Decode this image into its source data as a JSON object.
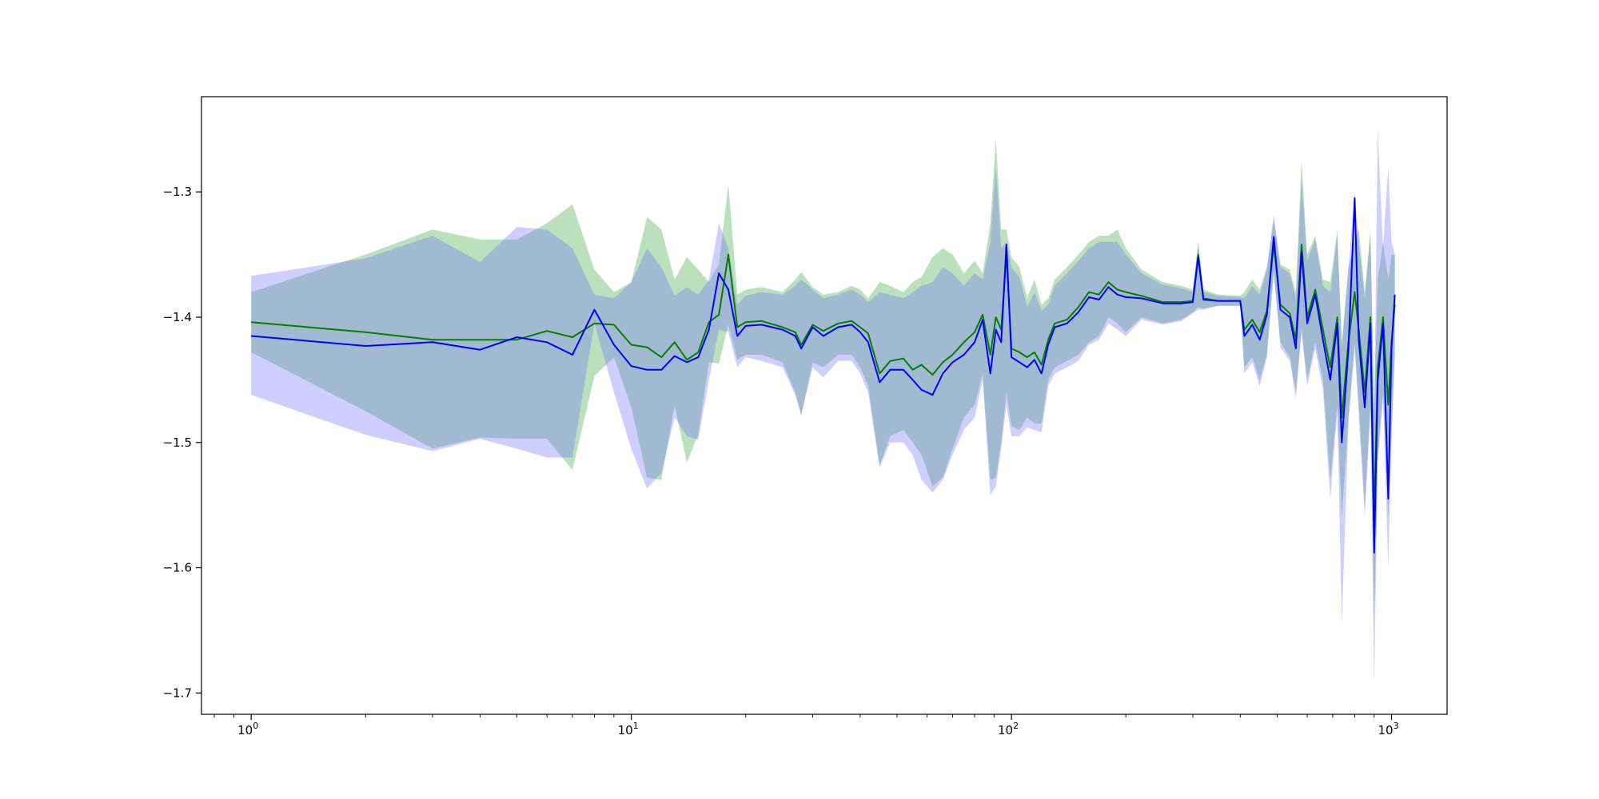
{
  "chart_data": {
    "type": "line",
    "title": "",
    "xlabel": "",
    "ylabel": "",
    "xscale": "log",
    "xlim": [
      0.74,
      1400
    ],
    "ylim": [
      -1.717,
      -1.224
    ],
    "grid": false,
    "legend": "none",
    "x_ticks": [
      {
        "value": 1,
        "base": "10",
        "exp": "0"
      },
      {
        "value": 10,
        "base": "10",
        "exp": "1"
      },
      {
        "value": 100,
        "base": "10",
        "exp": "2"
      },
      {
        "value": 1000,
        "base": "10",
        "exp": "3"
      }
    ],
    "y_ticks": [
      {
        "value": -1.3,
        "label": "−1.3"
      },
      {
        "value": -1.4,
        "label": "−1.4"
      },
      {
        "value": -1.5,
        "label": "−1.5"
      },
      {
        "value": -1.6,
        "label": "−1.6"
      },
      {
        "value": -1.7,
        "label": "−1.7"
      }
    ],
    "series": [
      {
        "color": "#008000",
        "band_color": "#2ca02c",
        "points": [
          [
            1,
            -1.404,
            -1.38,
            -1.428
          ],
          [
            2,
            -1.412,
            -1.35,
            -1.475
          ],
          [
            3,
            -1.418,
            -1.33,
            -1.505
          ],
          [
            4,
            -1.418,
            -1.338,
            -1.496
          ],
          [
            5,
            -1.418,
            -1.338,
            -1.497
          ],
          [
            6,
            -1.411,
            -1.325,
            -1.497
          ],
          [
            7,
            -1.416,
            -1.31,
            -1.522
          ],
          [
            8,
            -1.405,
            -1.362,
            -1.447
          ],
          [
            9,
            -1.406,
            -1.38,
            -1.432
          ],
          [
            10,
            -1.422,
            -1.372,
            -1.472
          ],
          [
            11,
            -1.424,
            -1.32,
            -1.528
          ],
          [
            12,
            -1.432,
            -1.33,
            -1.53
          ],
          [
            13,
            -1.42,
            -1.37,
            -1.47
          ],
          [
            14,
            -1.434,
            -1.352,
            -1.516
          ],
          [
            15,
            -1.428,
            -1.362,
            -1.494
          ],
          [
            16,
            -1.404,
            -1.372,
            -1.436
          ],
          [
            17,
            -1.398,
            -1.358,
            -1.437
          ],
          [
            18,
            -1.35,
            -1.294,
            -1.406
          ],
          [
            19,
            -1.408,
            -1.382,
            -1.434
          ],
          [
            20,
            -1.404,
            -1.378,
            -1.43
          ],
          [
            22,
            -1.403,
            -1.376,
            -1.43
          ],
          [
            25,
            -1.408,
            -1.38,
            -1.436
          ],
          [
            27,
            -1.412,
            -1.37,
            -1.46
          ],
          [
            28,
            -1.422,
            -1.364,
            -1.478
          ],
          [
            30,
            -1.406,
            -1.376,
            -1.436
          ],
          [
            32,
            -1.411,
            -1.382,
            -1.44
          ],
          [
            35,
            -1.405,
            -1.38,
            -1.43
          ],
          [
            38,
            -1.403,
            -1.375,
            -1.43
          ],
          [
            40,
            -1.408,
            -1.378,
            -1.44
          ],
          [
            42,
            -1.413,
            -1.385,
            -1.455
          ],
          [
            45,
            -1.445,
            -1.372,
            -1.518
          ],
          [
            48,
            -1.435,
            -1.375,
            -1.495
          ],
          [
            52,
            -1.433,
            -1.38,
            -1.49
          ],
          [
            55,
            -1.442,
            -1.372,
            -1.5
          ],
          [
            58,
            -1.438,
            -1.368,
            -1.51
          ],
          [
            62,
            -1.446,
            -1.352,
            -1.535
          ],
          [
            66,
            -1.436,
            -1.345,
            -1.528
          ],
          [
            70,
            -1.43,
            -1.35,
            -1.505
          ],
          [
            75,
            -1.42,
            -1.365,
            -1.48
          ],
          [
            80,
            -1.412,
            -1.355,
            -1.47
          ],
          [
            84,
            -1.398,
            -1.365,
            -1.445
          ],
          [
            88,
            -1.43,
            -1.325,
            -1.53
          ],
          [
            91,
            -1.4,
            -1.258,
            -1.528
          ],
          [
            94,
            -1.41,
            -1.33,
            -1.5
          ],
          [
            97,
            -1.35,
            -1.33,
            -1.46
          ],
          [
            100,
            -1.425,
            -1.352,
            -1.487
          ],
          [
            105,
            -1.428,
            -1.36,
            -1.49
          ],
          [
            110,
            -1.432,
            -1.385,
            -1.48
          ],
          [
            115,
            -1.428,
            -1.37,
            -1.485
          ],
          [
            120,
            -1.438,
            -1.39,
            -1.485
          ],
          [
            125,
            -1.418,
            -1.385,
            -1.45
          ],
          [
            130,
            -1.405,
            -1.37,
            -1.44
          ],
          [
            140,
            -1.402,
            -1.36,
            -1.435
          ],
          [
            150,
            -1.392,
            -1.35,
            -1.43
          ],
          [
            160,
            -1.38,
            -1.34,
            -1.42
          ],
          [
            170,
            -1.382,
            -1.335,
            -1.415
          ],
          [
            180,
            -1.372,
            -1.335,
            -1.4
          ],
          [
            190,
            -1.378,
            -1.33,
            -1.405
          ],
          [
            200,
            -1.38,
            -1.345,
            -1.412
          ],
          [
            220,
            -1.383,
            -1.362,
            -1.4
          ],
          [
            250,
            -1.388,
            -1.372,
            -1.405
          ],
          [
            280,
            -1.388,
            -1.375,
            -1.402
          ],
          [
            300,
            -1.387,
            -1.378,
            -1.396
          ],
          [
            310,
            -1.35,
            -1.34,
            -1.392
          ],
          [
            320,
            -1.385,
            -1.378,
            -1.393
          ],
          [
            350,
            -1.387,
            -1.382,
            -1.391
          ],
          [
            400,
            -1.387,
            -1.383,
            -1.391
          ],
          [
            410,
            -1.41,
            -1.38,
            -1.44
          ],
          [
            430,
            -1.402,
            -1.37,
            -1.432
          ],
          [
            450,
            -1.412,
            -1.378,
            -1.45
          ],
          [
            470,
            -1.395,
            -1.36,
            -1.43
          ],
          [
            490,
            -1.342,
            -1.322,
            -1.366
          ],
          [
            510,
            -1.39,
            -1.358,
            -1.42
          ],
          [
            540,
            -1.397,
            -1.362,
            -1.432
          ],
          [
            560,
            -1.418,
            -1.38,
            -1.46
          ],
          [
            580,
            -1.342,
            -1.275,
            -1.41
          ],
          [
            600,
            -1.4,
            -1.35,
            -1.45
          ],
          [
            630,
            -1.378,
            -1.335,
            -1.42
          ],
          [
            660,
            -1.41,
            -1.37,
            -1.45
          ],
          [
            690,
            -1.44,
            -1.372,
            -1.53
          ],
          [
            720,
            -1.4,
            -1.33,
            -1.47
          ],
          [
            740,
            -1.48,
            -1.42,
            -1.56
          ],
          [
            770,
            -1.42,
            -1.36,
            -1.48
          ],
          [
            800,
            -1.38,
            -1.34,
            -1.42
          ],
          [
            820,
            -1.41,
            -1.33,
            -1.47
          ],
          [
            850,
            -1.46,
            -1.38,
            -1.55
          ],
          [
            880,
            -1.4,
            -1.33,
            -1.47
          ],
          [
            900,
            -1.56,
            -1.47,
            -1.64
          ],
          [
            920,
            -1.44,
            -1.37,
            -1.51
          ],
          [
            950,
            -1.4,
            -1.34,
            -1.46
          ],
          [
            980,
            -1.47,
            -1.37,
            -1.56
          ],
          [
            1000,
            -1.42,
            -1.35,
            -1.49
          ],
          [
            1020,
            -1.39,
            -1.35,
            -1.43
          ]
        ]
      },
      {
        "color": "#0000ff",
        "band_color": "#6b6bff",
        "points": [
          [
            1,
            -1.415,
            -1.367,
            -1.462
          ],
          [
            2,
            -1.423,
            -1.353,
            -1.494
          ],
          [
            3,
            -1.42,
            -1.335,
            -1.507
          ],
          [
            4,
            -1.426,
            -1.356,
            -1.497
          ],
          [
            5,
            -1.416,
            -1.328,
            -1.505
          ],
          [
            6,
            -1.42,
            -1.33,
            -1.512
          ],
          [
            7,
            -1.43,
            -1.345,
            -1.512
          ],
          [
            8,
            -1.394,
            -1.382,
            -1.405
          ],
          [
            9,
            -1.422,
            -1.385,
            -1.46
          ],
          [
            10,
            -1.439,
            -1.372,
            -1.505
          ],
          [
            11,
            -1.442,
            -1.345,
            -1.537
          ],
          [
            12,
            -1.442,
            -1.36,
            -1.524
          ],
          [
            13,
            -1.431,
            -1.383,
            -1.48
          ],
          [
            14,
            -1.436,
            -1.376,
            -1.495
          ],
          [
            15,
            -1.432,
            -1.382,
            -1.498
          ],
          [
            16,
            -1.41,
            -1.37,
            -1.45
          ],
          [
            17,
            -1.365,
            -1.325,
            -1.41
          ],
          [
            18,
            -1.378,
            -1.345,
            -1.412
          ],
          [
            19,
            -1.415,
            -1.39,
            -1.44
          ],
          [
            20,
            -1.407,
            -1.383,
            -1.432
          ],
          [
            22,
            -1.406,
            -1.38,
            -1.435
          ],
          [
            25,
            -1.41,
            -1.382,
            -1.44
          ],
          [
            27,
            -1.415,
            -1.375,
            -1.462
          ],
          [
            28,
            -1.425,
            -1.37,
            -1.478
          ],
          [
            30,
            -1.408,
            -1.378,
            -1.44
          ],
          [
            32,
            -1.415,
            -1.385,
            -1.448
          ],
          [
            35,
            -1.408,
            -1.382,
            -1.435
          ],
          [
            38,
            -1.406,
            -1.378,
            -1.435
          ],
          [
            40,
            -1.412,
            -1.382,
            -1.445
          ],
          [
            42,
            -1.42,
            -1.388,
            -1.46
          ],
          [
            45,
            -1.452,
            -1.38,
            -1.52
          ],
          [
            48,
            -1.442,
            -1.382,
            -1.5
          ],
          [
            52,
            -1.442,
            -1.385,
            -1.5
          ],
          [
            55,
            -1.45,
            -1.38,
            -1.51
          ],
          [
            58,
            -1.458,
            -1.375,
            -1.53
          ],
          [
            62,
            -1.462,
            -1.372,
            -1.54
          ],
          [
            66,
            -1.445,
            -1.36,
            -1.53
          ],
          [
            70,
            -1.436,
            -1.365,
            -1.51
          ],
          [
            75,
            -1.43,
            -1.375,
            -1.49
          ],
          [
            80,
            -1.42,
            -1.365,
            -1.48
          ],
          [
            84,
            -1.402,
            -1.37,
            -1.45
          ],
          [
            88,
            -1.445,
            -1.34,
            -1.542
          ],
          [
            91,
            -1.41,
            -1.28,
            -1.535
          ],
          [
            94,
            -1.42,
            -1.345,
            -1.505
          ],
          [
            97,
            -1.342,
            -1.34,
            -1.47
          ],
          [
            100,
            -1.432,
            -1.36,
            -1.495
          ],
          [
            105,
            -1.436,
            -1.368,
            -1.495
          ],
          [
            110,
            -1.44,
            -1.392,
            -1.488
          ],
          [
            115,
            -1.434,
            -1.38,
            -1.49
          ],
          [
            120,
            -1.445,
            -1.395,
            -1.492
          ],
          [
            125,
            -1.422,
            -1.39,
            -1.455
          ],
          [
            130,
            -1.408,
            -1.375,
            -1.445
          ],
          [
            140,
            -1.405,
            -1.365,
            -1.44
          ],
          [
            150,
            -1.396,
            -1.355,
            -1.435
          ],
          [
            160,
            -1.384,
            -1.345,
            -1.422
          ],
          [
            170,
            -1.386,
            -1.34,
            -1.418
          ],
          [
            180,
            -1.376,
            -1.34,
            -1.405
          ],
          [
            190,
            -1.382,
            -1.34,
            -1.41
          ],
          [
            200,
            -1.384,
            -1.35,
            -1.415
          ],
          [
            220,
            -1.385,
            -1.365,
            -1.402
          ],
          [
            250,
            -1.389,
            -1.374,
            -1.406
          ],
          [
            280,
            -1.389,
            -1.377,
            -1.403
          ],
          [
            300,
            -1.388,
            -1.38,
            -1.397
          ],
          [
            310,
            -1.352,
            -1.342,
            -1.394
          ],
          [
            320,
            -1.386,
            -1.38,
            -1.394
          ],
          [
            350,
            -1.387,
            -1.383,
            -1.391
          ],
          [
            400,
            -1.387,
            -1.384,
            -1.391
          ],
          [
            410,
            -1.415,
            -1.385,
            -1.445
          ],
          [
            430,
            -1.406,
            -1.375,
            -1.436
          ],
          [
            450,
            -1.418,
            -1.382,
            -1.455
          ],
          [
            470,
            -1.398,
            -1.362,
            -1.432
          ],
          [
            490,
            -1.336,
            -1.318,
            -1.362
          ],
          [
            510,
            -1.394,
            -1.36,
            -1.424
          ],
          [
            540,
            -1.4,
            -1.365,
            -1.435
          ],
          [
            560,
            -1.425,
            -1.385,
            -1.465
          ],
          [
            580,
            -1.348,
            -1.29,
            -1.412
          ],
          [
            600,
            -1.405,
            -1.355,
            -1.455
          ],
          [
            630,
            -1.382,
            -1.338,
            -1.425
          ],
          [
            660,
            -1.418,
            -1.375,
            -1.458
          ],
          [
            690,
            -1.45,
            -1.38,
            -1.545
          ],
          [
            720,
            -1.405,
            -1.335,
            -1.475
          ],
          [
            740,
            -1.5,
            -1.425,
            -1.645
          ],
          [
            770,
            -1.425,
            -1.362,
            -1.485
          ],
          [
            800,
            -1.305,
            -1.3,
            -1.425
          ],
          [
            820,
            -1.418,
            -1.34,
            -1.478
          ],
          [
            850,
            -1.472,
            -1.385,
            -1.56
          ],
          [
            880,
            -1.405,
            -1.335,
            -1.475
          ],
          [
            900,
            -1.588,
            -1.48,
            -1.695
          ],
          [
            920,
            -1.45,
            -1.25,
            -1.515
          ],
          [
            950,
            -1.405,
            -1.345,
            -1.465
          ],
          [
            980,
            -1.545,
            -1.28,
            -1.6
          ],
          [
            1000,
            -1.425,
            -1.34,
            -1.498
          ],
          [
            1020,
            -1.382,
            -1.35,
            -1.43
          ]
        ]
      }
    ]
  }
}
